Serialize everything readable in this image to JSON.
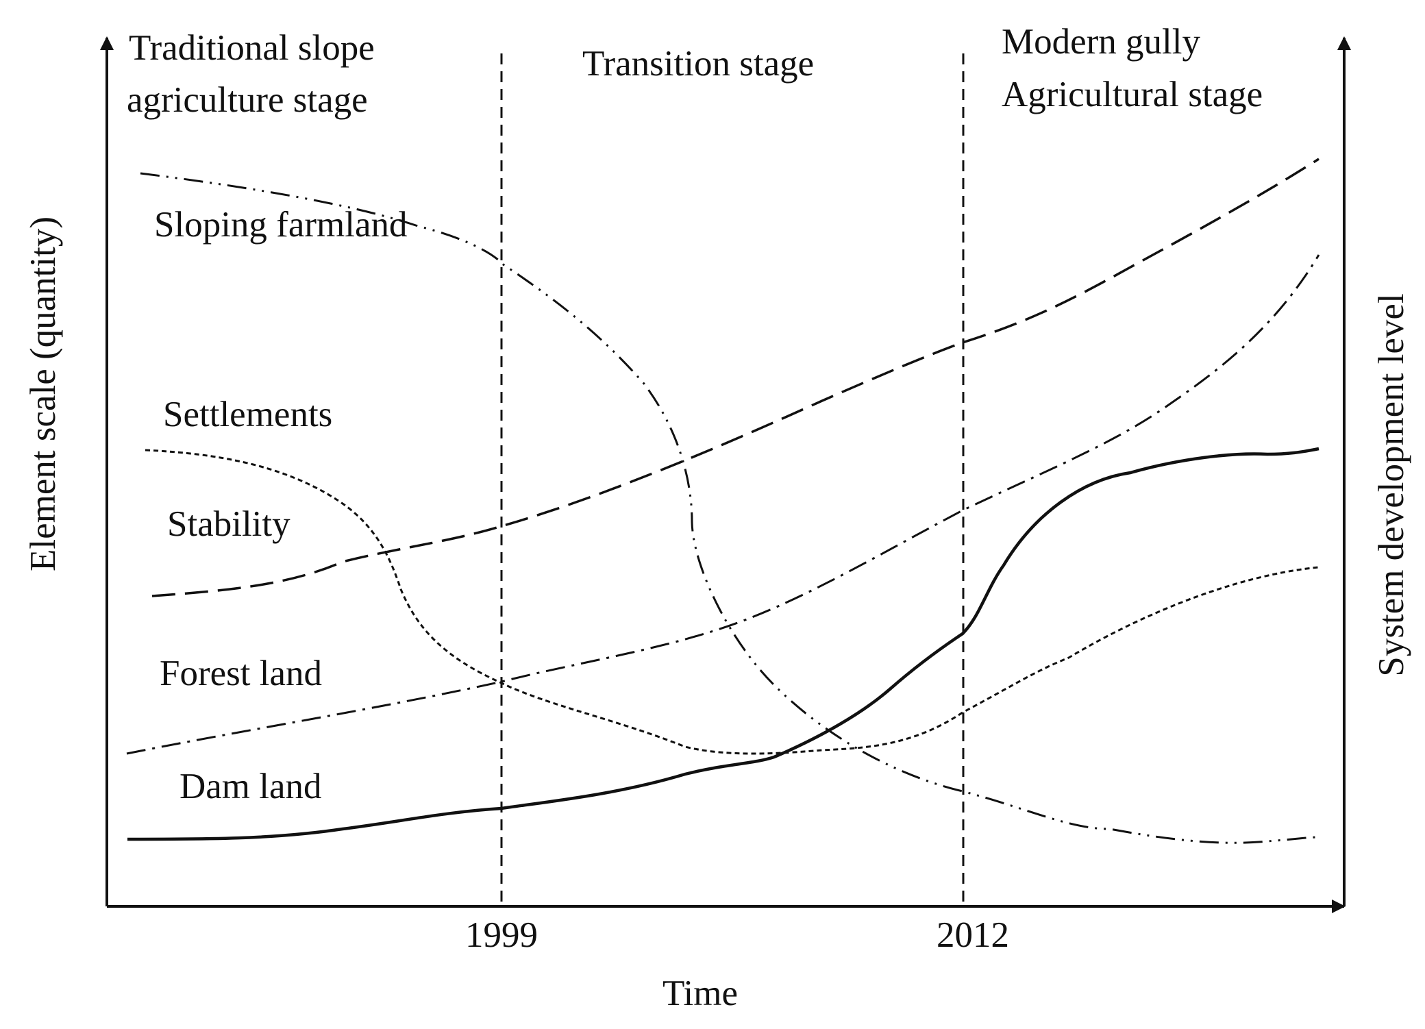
{
  "diagram": {
    "x_axis_label": "Time",
    "y_axis_left_label": "Element scale (quantity)",
    "y_axis_right_label": "System development level",
    "year_marks": [
      "1999",
      "2012"
    ],
    "stages": [
      {
        "lines": [
          "Traditional  slope",
          "agriculture stage"
        ]
      },
      {
        "lines": [
          "Transition stage"
        ]
      },
      {
        "lines": [
          "Modern gully",
          "Agricultural stage"
        ]
      }
    ],
    "curves": [
      {
        "name": "Sloping farmland",
        "style": "dash-dot-dot"
      },
      {
        "name": "Settlements",
        "style": "short-dash"
      },
      {
        "name": "Stability",
        "style": "long-dash"
      },
      {
        "name": "Forest land",
        "style": "dash-dot"
      },
      {
        "name": "Dam land",
        "style": "solid"
      }
    ],
    "line_color": "#111111"
  }
}
